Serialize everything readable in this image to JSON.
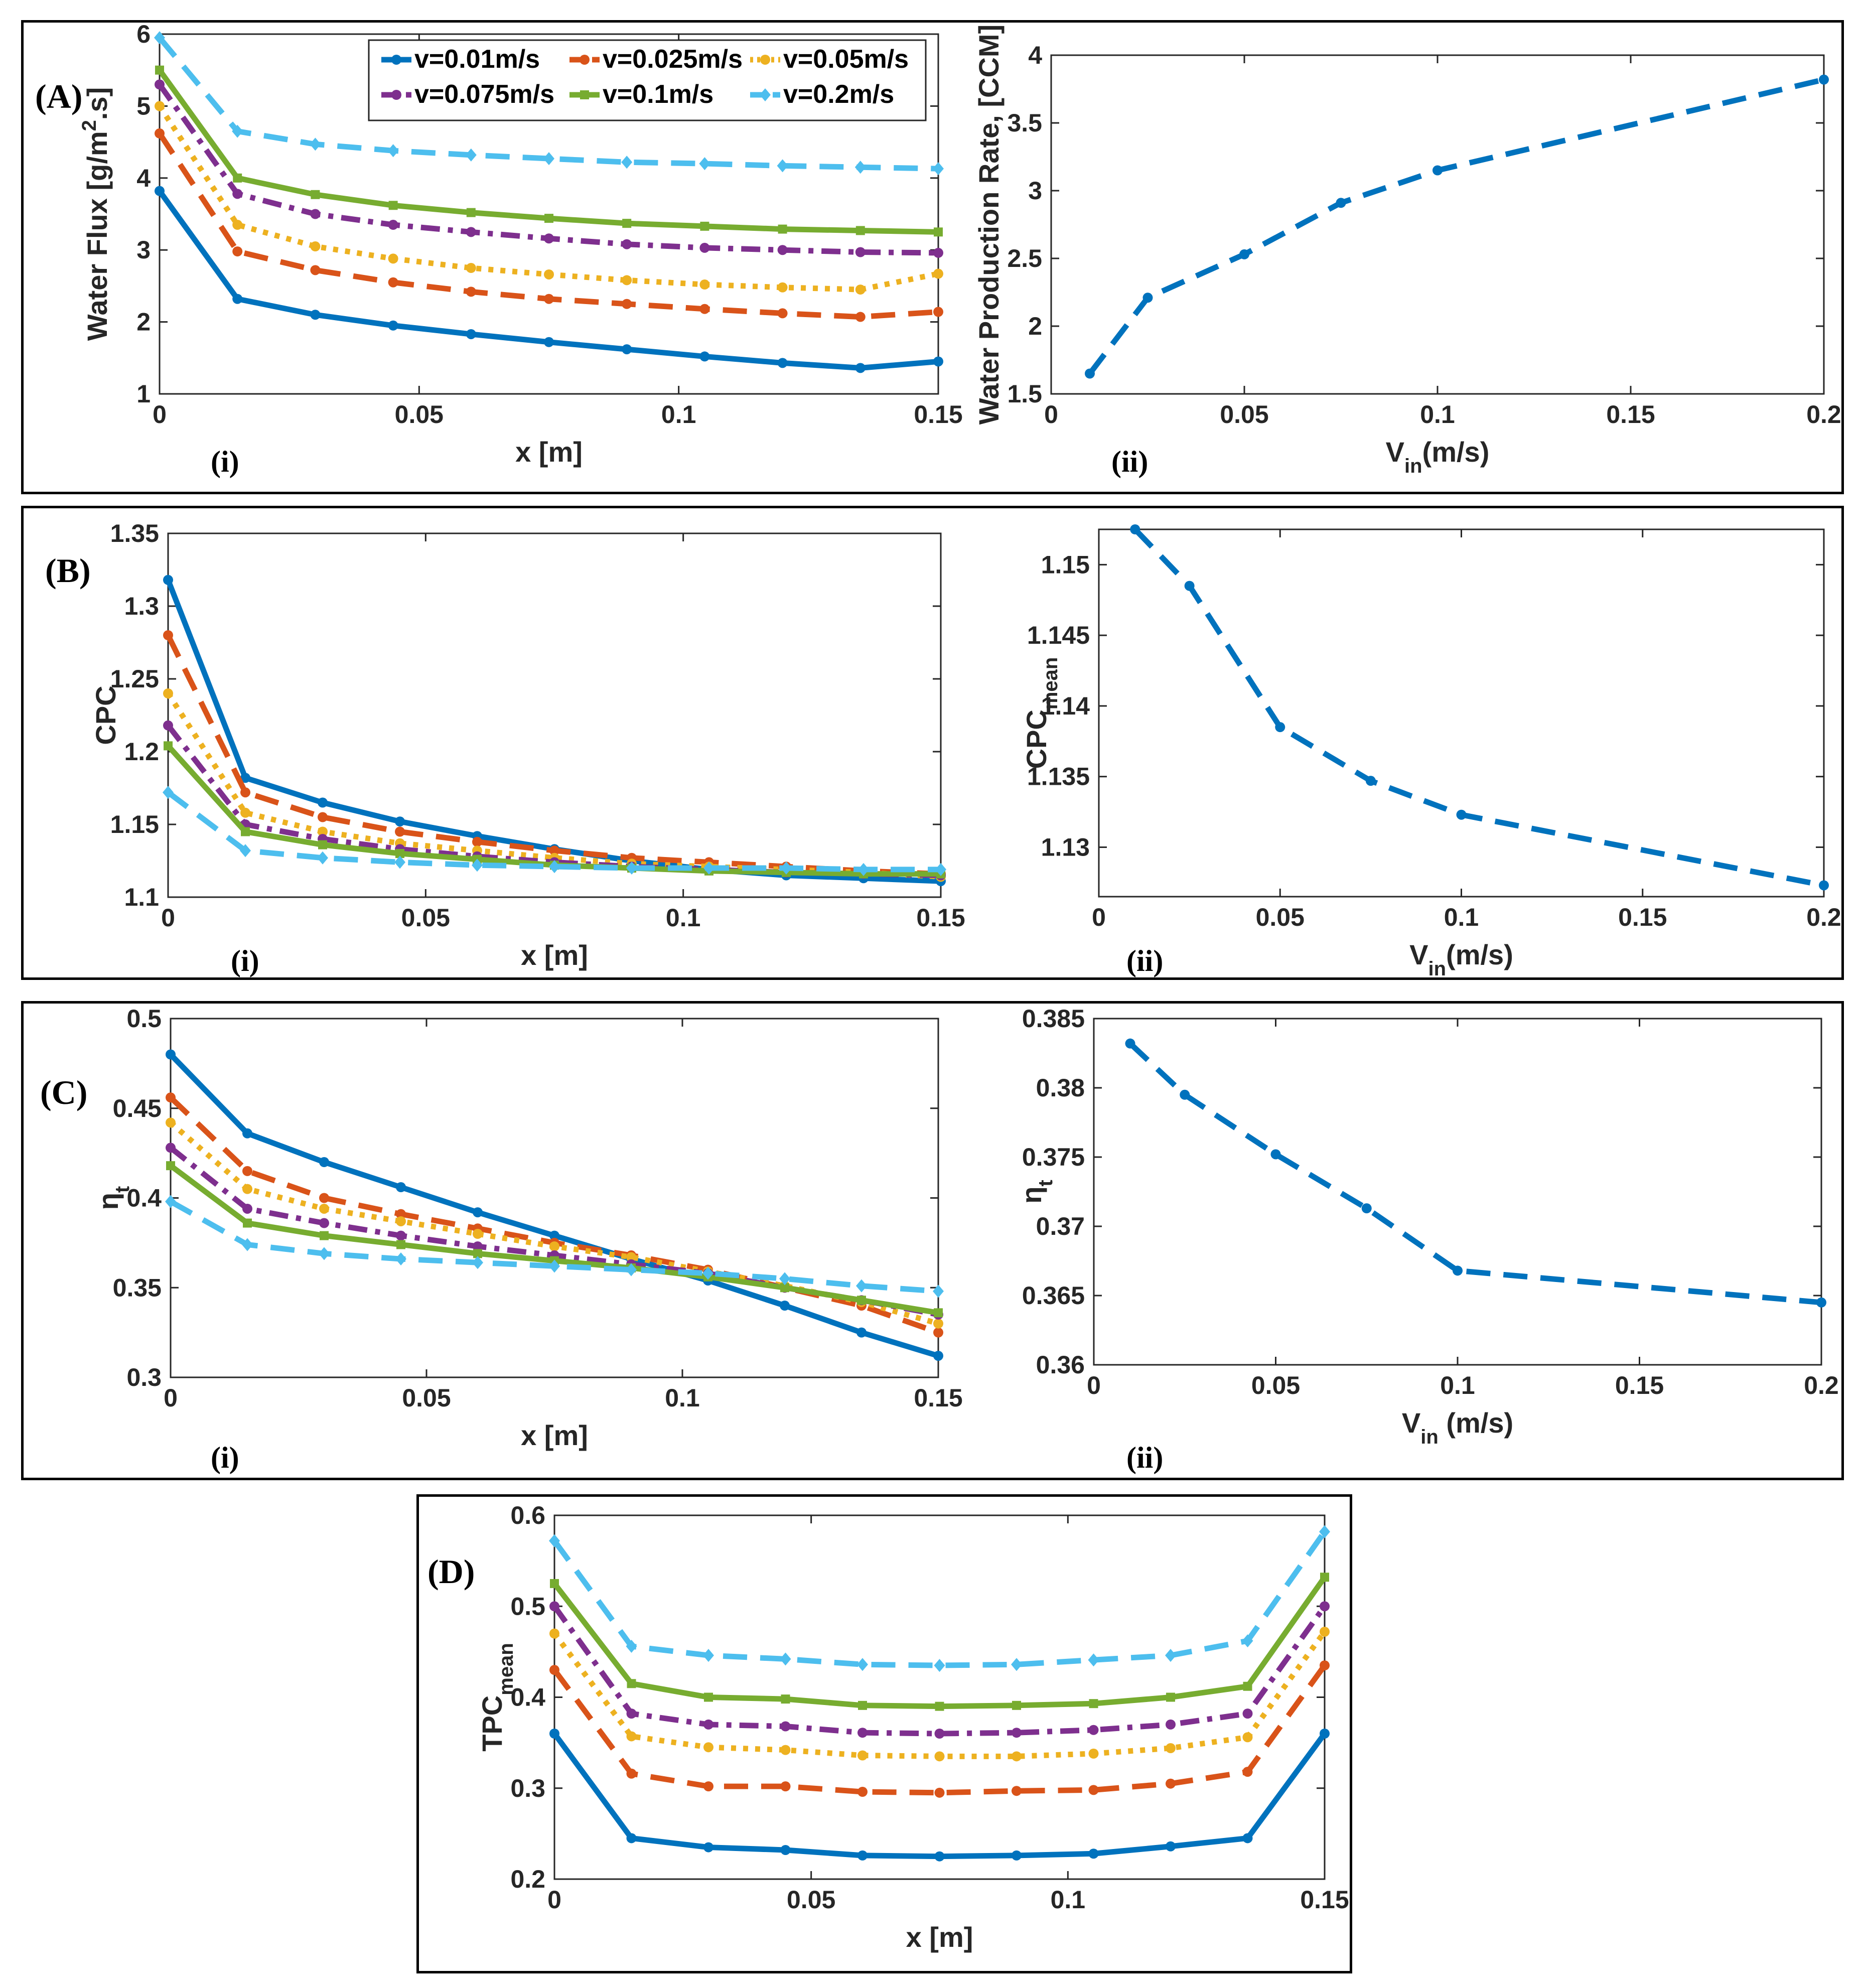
{
  "colors": {
    "s1": "#0072BD",
    "s2": "#D95319",
    "s3": "#EDB120",
    "s4": "#7E2F8E",
    "s5": "#77AC30",
    "s6": "#4DBEEE"
  },
  "labels": {
    "A": "(A)",
    "B": "(B)",
    "C": "(C)",
    "D": "(D)",
    "i": "(i)",
    "ii": "(ii)"
  },
  "legend": [
    "v=0.01m/s",
    "v=0.025m/s",
    "v=0.05m/s",
    "v=0.075m/s",
    "v=0.1m/s",
    "v=0.2m/s"
  ],
  "chart_data": [
    {
      "id": "A-i",
      "type": "line",
      "xlabel": "x [m]",
      "ylabel": "Water Flux [g/m^2.s]",
      "xlim": [
        0,
        0.15
      ],
      "ylim": [
        1,
        6
      ],
      "xticks": [
        "0",
        "0.05",
        "0.1",
        "0.15"
      ],
      "yticks": [
        "1",
        "2",
        "3",
        "4",
        "5",
        "6"
      ],
      "x": [
        0,
        0.015,
        0.03,
        0.045,
        0.06,
        0.075,
        0.09,
        0.105,
        0.12,
        0.135,
        0.15
      ],
      "series": [
        {
          "name": "v=0.01m/s",
          "values": [
            3.82,
            2.32,
            2.1,
            1.95,
            1.83,
            1.72,
            1.62,
            1.52,
            1.43,
            1.36,
            1.45
          ]
        },
        {
          "name": "v=0.025m/s",
          "values": [
            4.62,
            2.98,
            2.72,
            2.55,
            2.42,
            2.32,
            2.25,
            2.18,
            2.12,
            2.07,
            2.14
          ]
        },
        {
          "name": "v=0.05m/s",
          "values": [
            5.0,
            3.35,
            3.05,
            2.88,
            2.75,
            2.66,
            2.58,
            2.52,
            2.48,
            2.45,
            2.67
          ]
        },
        {
          "name": "v=0.075m/s",
          "values": [
            5.3,
            3.78,
            3.5,
            3.35,
            3.25,
            3.16,
            3.08,
            3.03,
            3.0,
            2.97,
            2.96
          ]
        },
        {
          "name": "v=0.1m/s",
          "values": [
            5.5,
            4.0,
            3.77,
            3.62,
            3.52,
            3.44,
            3.37,
            3.33,
            3.29,
            3.27,
            3.25
          ]
        },
        {
          "name": "v=0.2m/s",
          "values": [
            5.95,
            4.65,
            4.47,
            4.38,
            4.32,
            4.27,
            4.22,
            4.2,
            4.17,
            4.15,
            4.13
          ]
        }
      ]
    },
    {
      "id": "A-ii",
      "type": "line",
      "xlabel": "V_in(m/s)",
      "ylabel": "Water Production Rate, [CCM]",
      "xlim": [
        0,
        0.2
      ],
      "ylim": [
        1.5,
        4
      ],
      "xticks": [
        "0",
        "0.05",
        "0.1",
        "0.15",
        "0.2"
      ],
      "yticks": [
        "1.5",
        "2",
        "2.5",
        "3",
        "3.5",
        "4"
      ],
      "x": [
        0.01,
        0.025,
        0.05,
        0.075,
        0.1,
        0.2
      ],
      "values": [
        1.65,
        2.21,
        2.53,
        2.91,
        3.15,
        3.82
      ]
    },
    {
      "id": "B-i",
      "type": "line",
      "xlabel": "x [m]",
      "ylabel": "CPC",
      "xlim": [
        0,
        0.15
      ],
      "ylim": [
        1.1,
        1.35
      ],
      "xticks": [
        "0",
        "0.05",
        "0.1",
        "0.15"
      ],
      "yticks": [
        "1.1",
        "1.15",
        "1.2",
        "1.25",
        "1.3",
        "1.35"
      ],
      "x": [
        0,
        0.015,
        0.03,
        0.045,
        0.06,
        0.075,
        0.09,
        0.105,
        0.12,
        0.135,
        0.15
      ],
      "series": [
        {
          "name": "v=0.01m/s",
          "values": [
            1.318,
            1.182,
            1.165,
            1.152,
            1.142,
            1.133,
            1.125,
            1.119,
            1.115,
            1.113,
            1.111
          ]
        },
        {
          "name": "v=0.025m/s",
          "values": [
            1.28,
            1.172,
            1.155,
            1.145,
            1.138,
            1.132,
            1.127,
            1.124,
            1.121,
            1.118,
            1.116
          ]
        },
        {
          "name": "v=0.05m/s",
          "values": [
            1.24,
            1.158,
            1.145,
            1.137,
            1.132,
            1.127,
            1.123,
            1.121,
            1.119,
            1.117,
            1.114
          ]
        },
        {
          "name": "v=0.075m/s",
          "values": [
            1.218,
            1.15,
            1.14,
            1.133,
            1.128,
            1.124,
            1.121,
            1.119,
            1.117,
            1.116,
            1.115
          ]
        },
        {
          "name": "v=0.1m/s",
          "values": [
            1.204,
            1.145,
            1.136,
            1.13,
            1.126,
            1.122,
            1.12,
            1.118,
            1.117,
            1.116,
            1.116
          ]
        },
        {
          "name": "v=0.2m/s",
          "values": [
            1.172,
            1.132,
            1.127,
            1.124,
            1.122,
            1.121,
            1.12,
            1.12,
            1.12,
            1.119,
            1.119
          ]
        }
      ]
    },
    {
      "id": "B-ii",
      "type": "line",
      "xlabel": "V_in(m/s)",
      "ylabel": "CPC_mean",
      "xlim": [
        0,
        0.2
      ],
      "ylim": [
        1.1265,
        1.1525
      ],
      "xticks": [
        "0",
        "0.05",
        "0.1",
        "0.15",
        "0.2"
      ],
      "yticks": [
        "1.13",
        "1.135",
        "1.14",
        "1.145",
        "1.15"
      ],
      "x": [
        0.01,
        0.025,
        0.05,
        0.075,
        0.1,
        0.2
      ],
      "values": [
        1.1525,
        1.1485,
        1.1385,
        1.1347,
        1.1323,
        1.1273
      ]
    },
    {
      "id": "C-i",
      "type": "line",
      "xlabel": "x [m]",
      "ylabel": "η_t",
      "xlim": [
        0,
        0.15
      ],
      "ylim": [
        0.3,
        0.5
      ],
      "xticks": [
        "0",
        "0.05",
        "0.1",
        "0.15"
      ],
      "yticks": [
        "0.3",
        "0.35",
        "0.4",
        "0.45",
        "0.5"
      ],
      "x": [
        0,
        0.015,
        0.03,
        0.045,
        0.06,
        0.075,
        0.09,
        0.105,
        0.12,
        0.135,
        0.15
      ],
      "series": [
        {
          "name": "v=0.01m/s",
          "values": [
            0.48,
            0.436,
            0.42,
            0.406,
            0.392,
            0.379,
            0.366,
            0.354,
            0.34,
            0.325,
            0.312
          ]
        },
        {
          "name": "v=0.025m/s",
          "values": [
            0.456,
            0.415,
            0.4,
            0.391,
            0.383,
            0.375,
            0.368,
            0.36,
            0.35,
            0.34,
            0.325
          ]
        },
        {
          "name": "v=0.05m/s",
          "values": [
            0.442,
            0.405,
            0.394,
            0.387,
            0.38,
            0.373,
            0.367,
            0.359,
            0.351,
            0.342,
            0.33
          ]
        },
        {
          "name": "v=0.075m/s",
          "values": [
            0.428,
            0.394,
            0.386,
            0.379,
            0.373,
            0.368,
            0.363,
            0.358,
            0.35,
            0.343,
            0.335
          ]
        },
        {
          "name": "v=0.1m/s",
          "values": [
            0.418,
            0.386,
            0.379,
            0.374,
            0.369,
            0.365,
            0.361,
            0.356,
            0.35,
            0.343,
            0.336
          ]
        },
        {
          "name": "v=0.2m/s",
          "values": [
            0.398,
            0.374,
            0.369,
            0.366,
            0.364,
            0.362,
            0.36,
            0.358,
            0.355,
            0.351,
            0.348
          ]
        }
      ]
    },
    {
      "id": "C-ii",
      "type": "line",
      "xlabel": "V_in (m/s)",
      "ylabel": "η_t",
      "xlim": [
        0,
        0.2
      ],
      "ylim": [
        0.36,
        0.385
      ],
      "xticks": [
        "0",
        "0.05",
        "0.1",
        "0.15",
        "0.2"
      ],
      "yticks": [
        "0.36",
        "0.365",
        "0.37",
        "0.375",
        "0.38",
        "0.385"
      ],
      "x": [
        0.01,
        0.025,
        0.05,
        0.075,
        0.1,
        0.2
      ],
      "values": [
        0.3832,
        0.3795,
        0.3752,
        0.3713,
        0.3668,
        0.3645
      ]
    },
    {
      "id": "D",
      "type": "line",
      "xlabel": "x [m]",
      "ylabel": "TPC_mean",
      "xlim": [
        0,
        0.15
      ],
      "ylim": [
        0.2,
        0.6
      ],
      "xticks": [
        "0",
        "0.05",
        "0.1",
        "0.15"
      ],
      "yticks": [
        "0.2",
        "0.3",
        "0.4",
        "0.5",
        "0.6"
      ],
      "x": [
        0,
        0.015,
        0.03,
        0.045,
        0.06,
        0.075,
        0.09,
        0.105,
        0.12,
        0.135,
        0.15
      ],
      "series": [
        {
          "name": "v=0.01m/s",
          "values": [
            0.36,
            0.245,
            0.235,
            0.232,
            0.226,
            0.225,
            0.226,
            0.228,
            0.236,
            0.245,
            0.36
          ]
        },
        {
          "name": "v=0.025m/s",
          "values": [
            0.43,
            0.316,
            0.302,
            0.302,
            0.296,
            0.295,
            0.297,
            0.298,
            0.305,
            0.318,
            0.435
          ]
        },
        {
          "name": "v=0.05m/s",
          "values": [
            0.47,
            0.357,
            0.345,
            0.342,
            0.336,
            0.335,
            0.335,
            0.338,
            0.344,
            0.356,
            0.472
          ]
        },
        {
          "name": "v=0.075m/s",
          "values": [
            0.5,
            0.382,
            0.37,
            0.368,
            0.361,
            0.36,
            0.361,
            0.364,
            0.37,
            0.382,
            0.5
          ]
        },
        {
          "name": "v=0.1m/s",
          "values": [
            0.525,
            0.415,
            0.4,
            0.398,
            0.391,
            0.39,
            0.391,
            0.393,
            0.4,
            0.412,
            0.532
          ]
        },
        {
          "name": "v=0.2m/s",
          "values": [
            0.572,
            0.456,
            0.446,
            0.442,
            0.436,
            0.435,
            0.436,
            0.441,
            0.446,
            0.462,
            0.582
          ]
        }
      ]
    }
  ]
}
